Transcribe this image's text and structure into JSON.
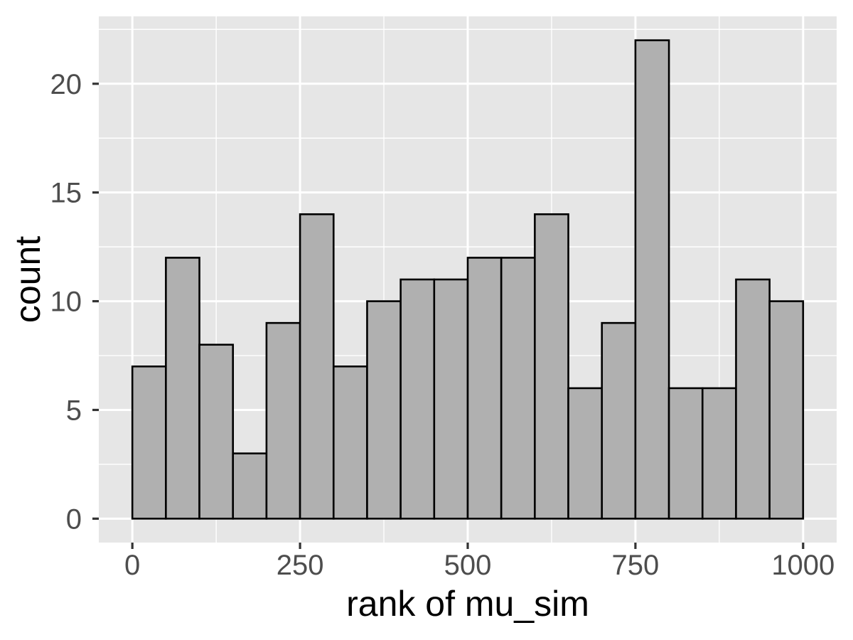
{
  "chart_data": {
    "type": "bar",
    "subtype": "histogram",
    "title": "",
    "xlabel": "rank of mu_sim",
    "ylabel": "count",
    "bin_start": 0,
    "bin_width": 50,
    "categories": [
      0,
      50,
      100,
      150,
      200,
      250,
      300,
      350,
      400,
      450,
      500,
      550,
      600,
      650,
      700,
      750,
      800,
      850,
      900,
      950
    ],
    "values": [
      7,
      12,
      8,
      3,
      9,
      14,
      7,
      10,
      11,
      11,
      12,
      12,
      14,
      6,
      9,
      22,
      6,
      6,
      11,
      10
    ],
    "xlim": [
      -50,
      1050
    ],
    "ylim": [
      -1.1,
      23.1
    ],
    "grid": "on",
    "legend": "none",
    "x_ticks": [
      {
        "value": 0,
        "label": "0"
      },
      {
        "value": 250,
        "label": "250"
      },
      {
        "value": 500,
        "label": "500"
      },
      {
        "value": 750,
        "label": "750"
      },
      {
        "value": 1000,
        "label": "1000"
      }
    ],
    "y_ticks": [
      {
        "value": 0,
        "label": "0"
      },
      {
        "value": 5,
        "label": "5"
      },
      {
        "value": 10,
        "label": "10"
      },
      {
        "value": 15,
        "label": "15"
      },
      {
        "value": 20,
        "label": "20"
      }
    ],
    "x_minor_ticks": [
      125,
      375,
      625,
      875
    ],
    "y_minor_ticks": [
      2.5,
      7.5,
      12.5,
      17.5,
      22.5
    ],
    "colors": {
      "bar_fill": "#b0b0b0",
      "bar_stroke": "#000000",
      "panel_background": "#e6e6e6",
      "grid_major": "#ffffff",
      "grid_minor": "#ffffff",
      "tick_mark": "#333333",
      "tick_label": "#4d4d4d",
      "axis_title": "#000000",
      "figure_background": "#ffffff"
    }
  }
}
